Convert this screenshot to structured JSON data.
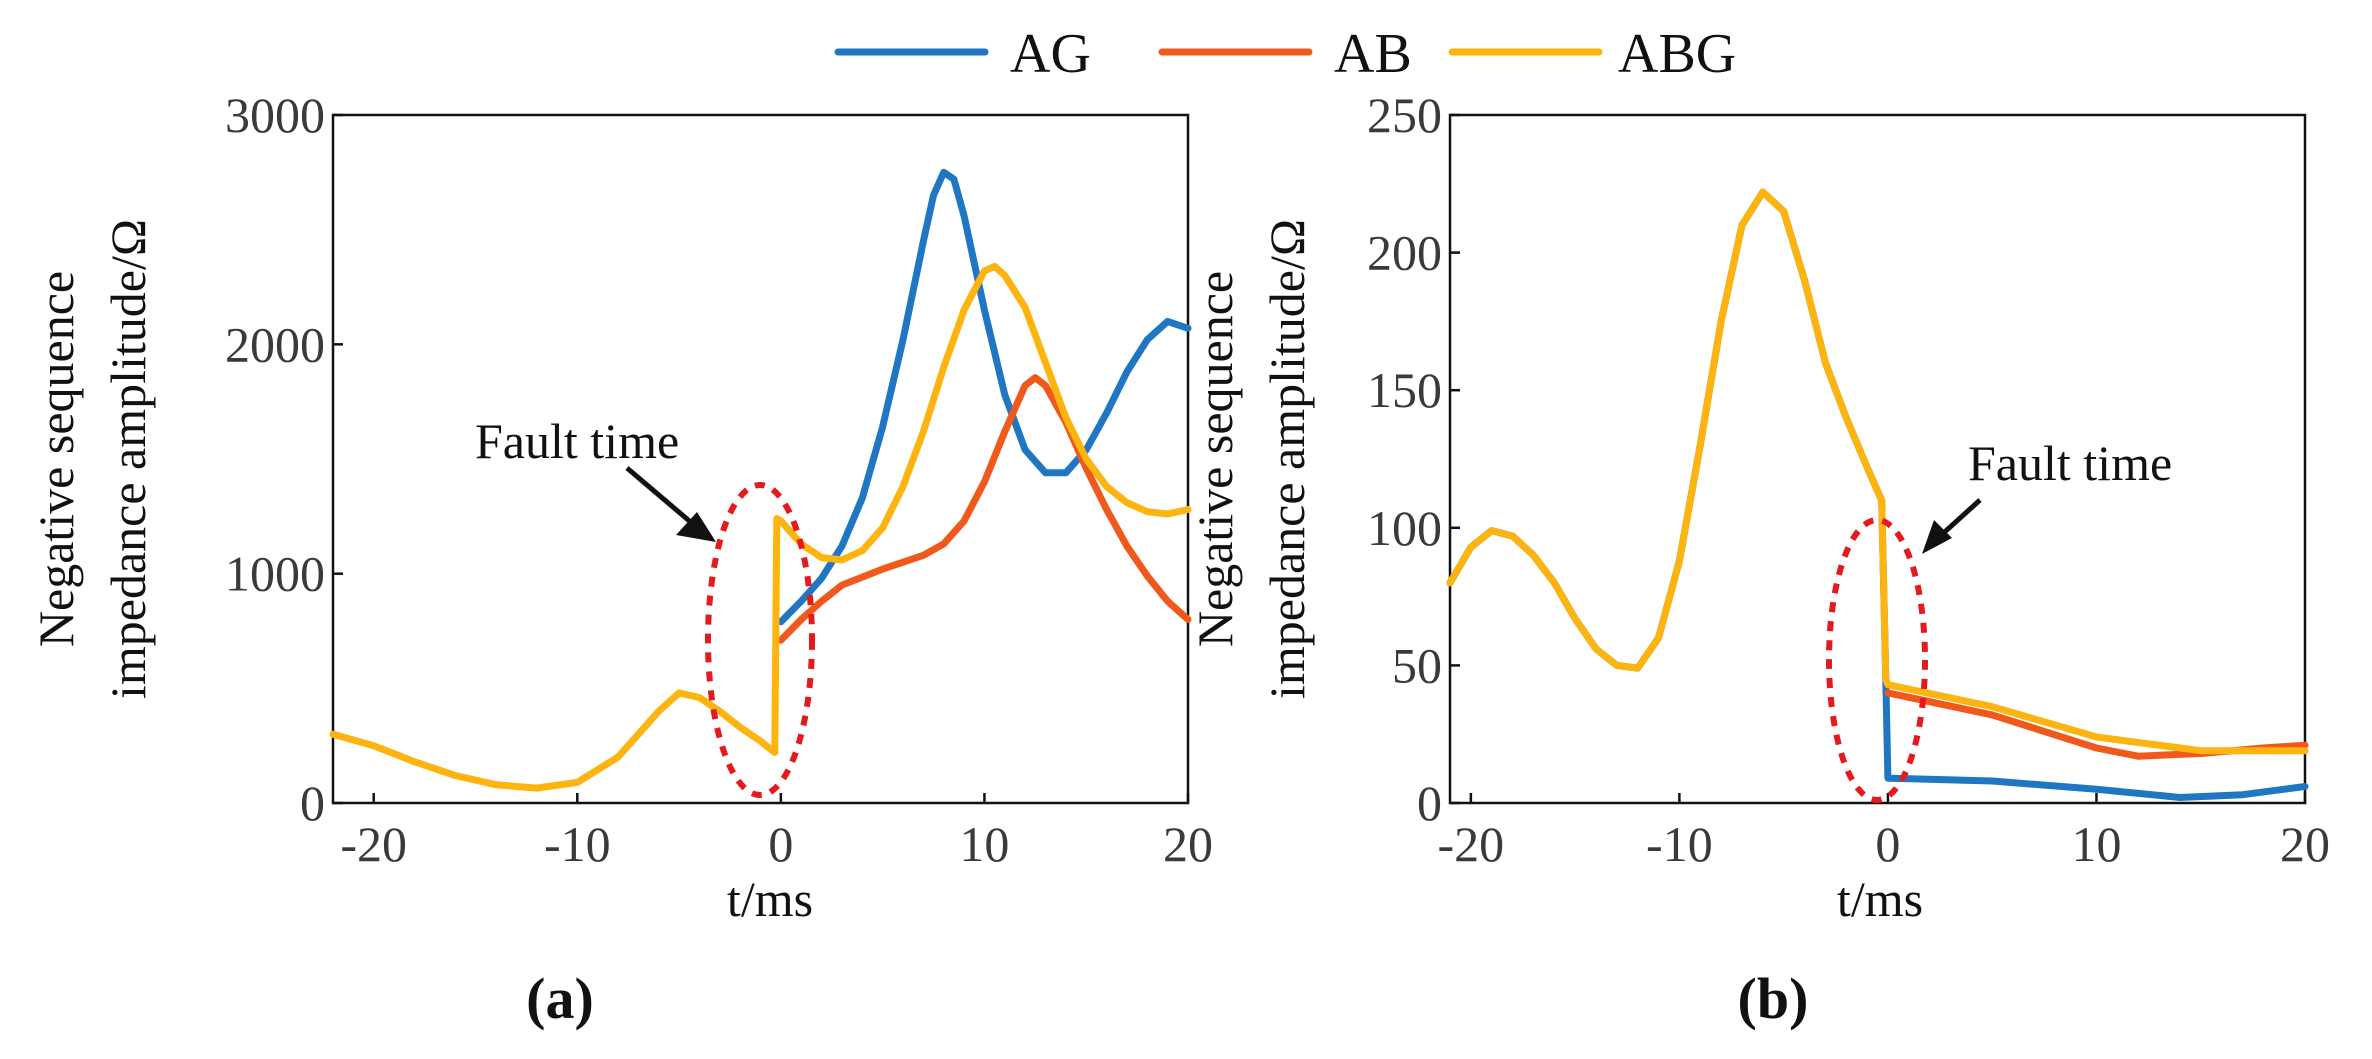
{
  "legend": [
    {
      "name": "AG",
      "color": "#1f77c4"
    },
    {
      "name": "AB",
      "color": "#f0581c"
    },
    {
      "name": "ABG",
      "color": "#fdb40f"
    }
  ],
  "chart_data": [
    {
      "type": "line",
      "panel_label": "(a)",
      "xlabel": "t/ms",
      "ylabel_lines": [
        "Negative sequence",
        "impedance amplitude/Ω"
      ],
      "xlim": [
        -22,
        20
      ],
      "ylim": [
        0,
        3000
      ],
      "xticks": [
        -20,
        -10,
        0,
        10,
        20
      ],
      "yticks": [
        0,
        1000,
        2000,
        3000
      ],
      "annotation": {
        "text": "Fault time",
        "x": 0
      },
      "series": [
        {
          "name": "AG",
          "points": [
            [
              0,
              790
            ],
            [
              1,
              880
            ],
            [
              2,
              980
            ],
            [
              3,
              1120
            ],
            [
              4,
              1330
            ],
            [
              5,
              1640
            ],
            [
              6,
              2020
            ],
            [
              7,
              2450
            ],
            [
              7.5,
              2650
            ],
            [
              8,
              2750
            ],
            [
              8.5,
              2720
            ],
            [
              9,
              2560
            ],
            [
              10,
              2150
            ],
            [
              11,
              1780
            ],
            [
              12,
              1540
            ],
            [
              13,
              1440
            ],
            [
              14,
              1440
            ],
            [
              15,
              1540
            ],
            [
              16,
              1700
            ],
            [
              17,
              1880
            ],
            [
              18,
              2020
            ],
            [
              19,
              2100
            ],
            [
              20,
              2070
            ]
          ]
        },
        {
          "name": "AB",
          "points": [
            [
              0,
              710
            ],
            [
              1,
              800
            ],
            [
              2,
              880
            ],
            [
              3,
              950
            ],
            [
              5,
              1020
            ],
            [
              7,
              1080
            ],
            [
              8,
              1130
            ],
            [
              9,
              1230
            ],
            [
              10,
              1400
            ],
            [
              11,
              1620
            ],
            [
              12,
              1820
            ],
            [
              12.5,
              1855
            ],
            [
              13,
              1820
            ],
            [
              14,
              1660
            ],
            [
              15,
              1460
            ],
            [
              16,
              1280
            ],
            [
              17,
              1120
            ],
            [
              18,
              990
            ],
            [
              19,
              880
            ],
            [
              20,
              800
            ]
          ]
        },
        {
          "name": "ABG",
          "points": [
            [
              -22,
              300
            ],
            [
              -20,
              250
            ],
            [
              -18,
              180
            ],
            [
              -16,
              120
            ],
            [
              -14,
              80
            ],
            [
              -12,
              65
            ],
            [
              -10,
              90
            ],
            [
              -8,
              200
            ],
            [
              -6,
              400
            ],
            [
              -5,
              480
            ],
            [
              -4,
              460
            ],
            [
              -3,
              400
            ],
            [
              -2,
              330
            ],
            [
              -1,
              270
            ],
            [
              -0.3,
              220
            ],
            [
              -0.2,
              1240
            ],
            [
              0,
              1230
            ],
            [
              1,
              1130
            ],
            [
              2,
              1070
            ],
            [
              3,
              1060
            ],
            [
              4,
              1100
            ],
            [
              5,
              1200
            ],
            [
              6,
              1380
            ],
            [
              7,
              1620
            ],
            [
              8,
              1900
            ],
            [
              9,
              2150
            ],
            [
              10,
              2320
            ],
            [
              10.5,
              2340
            ],
            [
              11,
              2300
            ],
            [
              12,
              2160
            ],
            [
              13,
              1920
            ],
            [
              14,
              1680
            ],
            [
              15,
              1500
            ],
            [
              16,
              1380
            ],
            [
              17,
              1310
            ],
            [
              18,
              1270
            ],
            [
              19,
              1260
            ],
            [
              20,
              1280
            ]
          ]
        }
      ]
    },
    {
      "type": "line",
      "panel_label": "(b)",
      "xlabel": "t/ms",
      "ylabel_lines": [
        "Negative sequence",
        "impedance amplitude/Ω"
      ],
      "xlim": [
        -21,
        20
      ],
      "ylim": [
        0,
        250
      ],
      "xticks": [
        -20,
        -10,
        0,
        10,
        20
      ],
      "yticks": [
        0,
        50,
        100,
        150,
        200,
        250
      ],
      "annotation": {
        "text": "Fault time",
        "x": 0
      },
      "series": [
        {
          "name": "AG",
          "points": [
            [
              -21,
              80
            ],
            [
              -20,
              93
            ],
            [
              -19,
              99
            ],
            [
              -18,
              97
            ],
            [
              -17,
              90
            ],
            [
              -16,
              80
            ],
            [
              -15,
              67
            ],
            [
              -14,
              56
            ],
            [
              -13,
              50
            ],
            [
              -12,
              49
            ],
            [
              -11,
              60
            ],
            [
              -10,
              88
            ],
            [
              -9,
              130
            ],
            [
              -8,
              175
            ],
            [
              -7,
              210
            ],
            [
              -6,
              222
            ],
            [
              -5,
              215
            ],
            [
              -4,
              190
            ],
            [
              -3,
              160
            ],
            [
              -2,
              140
            ],
            [
              -1,
              122
            ],
            [
              -0.3,
              110
            ],
            [
              -0.1,
              45
            ],
            [
              0,
              9
            ],
            [
              5,
              8
            ],
            [
              10,
              5
            ],
            [
              14,
              2
            ],
            [
              17,
              3
            ],
            [
              20,
              6
            ]
          ]
        },
        {
          "name": "AB",
          "points": [
            [
              0,
              40
            ],
            [
              5,
              32
            ],
            [
              10,
              20
            ],
            [
              12,
              17
            ],
            [
              15,
              18
            ],
            [
              18,
              20
            ],
            [
              20,
              21
            ]
          ]
        },
        {
          "name": "ABG",
          "points": [
            [
              -21,
              80
            ],
            [
              -20,
              93
            ],
            [
              -19,
              99
            ],
            [
              -18,
              97
            ],
            [
              -17,
              90
            ],
            [
              -16,
              80
            ],
            [
              -15,
              67
            ],
            [
              -14,
              56
            ],
            [
              -13,
              50
            ],
            [
              -12,
              49
            ],
            [
              -11,
              60
            ],
            [
              -10,
              88
            ],
            [
              -9,
              130
            ],
            [
              -8,
              175
            ],
            [
              -7,
              210
            ],
            [
              -6,
              222
            ],
            [
              -5,
              215
            ],
            [
              -4,
              190
            ],
            [
              -3,
              160
            ],
            [
              -2,
              140
            ],
            [
              -1,
              122
            ],
            [
              -0.3,
              110
            ],
            [
              -0.1,
              45
            ],
            [
              0,
              43
            ],
            [
              5,
              35
            ],
            [
              10,
              24
            ],
            [
              15,
              19
            ],
            [
              20,
              19
            ]
          ]
        }
      ]
    }
  ]
}
